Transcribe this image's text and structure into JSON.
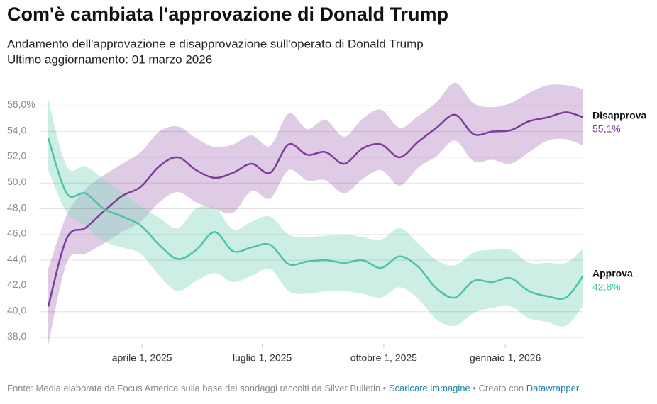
{
  "chart_data": {
    "type": "line-band",
    "title": "Com'è cambiata l'approvazione di Donald Trump",
    "subtitle": [
      "Andamento dell'approvazione e disapprovazione sull'operato di Donald Trump",
      "Ultimo aggiornamento: 01 marzo 2026"
    ],
    "x": [
      "2025-01-20",
      "2025-02-03",
      "2025-02-17",
      "2025-03-03",
      "2025-03-17",
      "2025-03-31",
      "2025-04-14",
      "2025-04-28",
      "2025-05-12",
      "2025-05-26",
      "2025-06-09",
      "2025-06-23",
      "2025-07-07",
      "2025-07-21",
      "2025-08-04",
      "2025-08-18",
      "2025-09-01",
      "2025-09-15",
      "2025-09-29",
      "2025-10-13",
      "2025-10-27",
      "2025-11-10",
      "2025-11-24",
      "2025-12-08",
      "2025-12-22",
      "2026-01-05",
      "2026-01-19",
      "2026-02-02",
      "2026-02-16",
      "2026-03-01"
    ],
    "xlim": [
      "2025-01-20",
      "2026-03-01"
    ],
    "xticks": [
      {
        "value": "2025-04-01",
        "label": "aprile 1, 2025"
      },
      {
        "value": "2025-07-01",
        "label": "luglio 1, 2025"
      },
      {
        "value": "2025-10-01",
        "label": "ottobre 1, 2025"
      },
      {
        "value": "2026-01-01",
        "label": "gennaio 1, 2026"
      }
    ],
    "ylim": [
      37.4,
      58
    ],
    "yticks": [
      {
        "value": 38,
        "label": "38,0"
      },
      {
        "value": 40,
        "label": "40,0"
      },
      {
        "value": 42,
        "label": "42,0"
      },
      {
        "value": 44,
        "label": "44,0"
      },
      {
        "value": 46,
        "label": "46,0"
      },
      {
        "value": 48,
        "label": "48,0"
      },
      {
        "value": 50,
        "label": "50,0"
      },
      {
        "value": 52,
        "label": "52,0"
      },
      {
        "value": 54,
        "label": "54,0"
      },
      {
        "value": 56,
        "label": "56,0%"
      }
    ],
    "grid": true,
    "series": [
      {
        "name": "Disapprova",
        "color": "#7d3c98",
        "band_color": "#b98bc8",
        "values": [
          40.4,
          45.7,
          46.5,
          47.8,
          49.0,
          49.7,
          51.3,
          52.0,
          51.0,
          50.4,
          50.8,
          51.5,
          50.8,
          53.0,
          52.2,
          52.4,
          51.5,
          52.7,
          53.0,
          52.0,
          53.2,
          54.3,
          55.3,
          53.8,
          54.0,
          54.1,
          54.8,
          55.1,
          55.5,
          55.1
        ],
        "upper": [
          43.3,
          47.5,
          49.5,
          50.6,
          51.5,
          52.4,
          54.0,
          54.4,
          53.5,
          52.8,
          53.0,
          53.7,
          52.9,
          55.4,
          54.2,
          54.9,
          53.6,
          55.0,
          55.7,
          54.3,
          55.2,
          56.3,
          57.8,
          56.2,
          55.9,
          56.2,
          57.0,
          57.6,
          57.6,
          57.3
        ],
        "lower": [
          37.4,
          43.8,
          44.5,
          45.3,
          46.2,
          47.0,
          48.5,
          49.3,
          48.5,
          48.0,
          47.7,
          49.4,
          48.8,
          51.0,
          50.2,
          50.2,
          49.2,
          50.3,
          51.0,
          49.8,
          51.2,
          52.1,
          53.3,
          51.7,
          51.8,
          51.5,
          52.4,
          53.3,
          53.4,
          52.9
        ],
        "value_labels": [
          null,
          null,
          null,
          null,
          null,
          null,
          null,
          null,
          null,
          null,
          null,
          null,
          null,
          null,
          null,
          null,
          null,
          null,
          null,
          null,
          null,
          null,
          null,
          null,
          null,
          null,
          null,
          null,
          null,
          "55,1%"
        ]
      },
      {
        "name": "Approva",
        "color": "#4cc4a4",
        "band_color": "#8ed9c3",
        "values": [
          53.5,
          49.2,
          49.2,
          48.0,
          47.4,
          46.7,
          45.2,
          44.1,
          44.8,
          46.2,
          44.7,
          45.0,
          45.2,
          43.7,
          43.9,
          44.0,
          43.8,
          44.0,
          43.4,
          44.3,
          43.5,
          41.8,
          41.1,
          42.4,
          42.3,
          42.6,
          41.6,
          41.2,
          41.1,
          42.8
        ],
        "upper": [
          56.5,
          51.3,
          51.3,
          50.3,
          49.3,
          48.2,
          47.3,
          46.5,
          48.0,
          48.1,
          46.4,
          47.0,
          47.4,
          46.0,
          45.8,
          45.9,
          46.0,
          45.8,
          45.6,
          46.5,
          45.3,
          44.0,
          43.6,
          44.6,
          44.8,
          44.8,
          43.8,
          43.8,
          43.8,
          44.9
        ],
        "lower": [
          51.0,
          47.7,
          46.7,
          45.5,
          45.0,
          44.5,
          42.8,
          41.6,
          42.4,
          43.0,
          42.3,
          42.8,
          43.3,
          41.6,
          41.4,
          41.6,
          41.6,
          41.4,
          41.1,
          41.9,
          41.0,
          39.4,
          38.9,
          39.9,
          40.3,
          40.4,
          39.5,
          39.2,
          38.9,
          40.5
        ],
        "value_labels": [
          null,
          null,
          null,
          null,
          null,
          null,
          null,
          null,
          null,
          null,
          null,
          null,
          null,
          null,
          null,
          null,
          null,
          null,
          null,
          null,
          null,
          null,
          null,
          null,
          null,
          null,
          null,
          null,
          null,
          "42,8%"
        ]
      }
    ],
    "footer": {
      "source": "Fonte: Media elaborata da Focus America sulla base dei sondaggi raccolti da Silver Bulletin •",
      "download": "Scaricare immagine",
      "created": "• Creato con",
      "tool": "Datawrapper"
    }
  }
}
